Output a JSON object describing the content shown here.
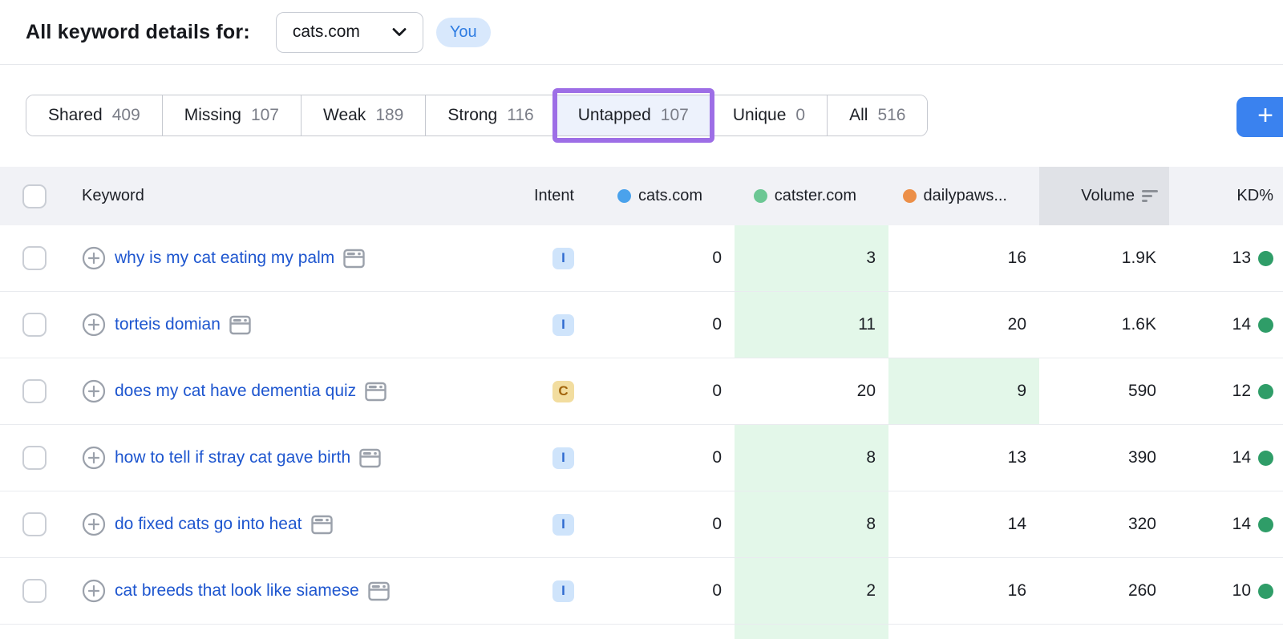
{
  "header": {
    "title": "All keyword details for:",
    "domain_selector": {
      "value": "cats.com"
    },
    "you_badge": "You"
  },
  "filters": {
    "tabs": [
      {
        "label": "Shared",
        "count": "409"
      },
      {
        "label": "Missing",
        "count": "107"
      },
      {
        "label": "Weak",
        "count": "189"
      },
      {
        "label": "Strong",
        "count": "116"
      },
      {
        "label": "Untapped",
        "count": "107",
        "selected": true,
        "annotated": true
      },
      {
        "label": "Unique",
        "count": "0"
      },
      {
        "label": "All",
        "count": "516"
      }
    ],
    "add_button": "+"
  },
  "table": {
    "columns": {
      "keyword": "Keyword",
      "intent": "Intent",
      "competitors": [
        {
          "name": "cats.com",
          "dot_color": "#4aa2ec"
        },
        {
          "name": "catster.com",
          "dot_color": "#6cc794"
        },
        {
          "name": "dailypaws...",
          "dot_color": "#ec8f48"
        }
      ],
      "volume": "Volume",
      "volume_sort": "desc",
      "kd": "KD%"
    },
    "rows": [
      {
        "keyword": "why is my cat eating my palm",
        "intent": "I",
        "cats": "0",
        "catster": "3",
        "dailypaws": "16",
        "volume": "1.9K",
        "kd": "13",
        "highlight": "catster"
      },
      {
        "keyword": "torteis domian",
        "intent": "I",
        "cats": "0",
        "catster": "11",
        "dailypaws": "20",
        "volume": "1.6K",
        "kd": "14",
        "highlight": "catster"
      },
      {
        "keyword": "does my cat have dementia quiz",
        "intent": "C",
        "cats": "0",
        "catster": "20",
        "dailypaws": "9",
        "volume": "590",
        "kd": "12",
        "highlight": "dailypaws"
      },
      {
        "keyword": "how to tell if stray cat gave birth",
        "intent": "I",
        "cats": "0",
        "catster": "8",
        "dailypaws": "13",
        "volume": "390",
        "kd": "14",
        "highlight": "catster"
      },
      {
        "keyword": "do fixed cats go into heat",
        "intent": "I",
        "cats": "0",
        "catster": "8",
        "dailypaws": "14",
        "volume": "320",
        "kd": "14",
        "highlight": "catster"
      },
      {
        "keyword": "cat breeds that look like siamese",
        "intent": "I",
        "cats": "0",
        "catster": "2",
        "dailypaws": "16",
        "volume": "260",
        "kd": "10",
        "highlight": "catster"
      }
    ],
    "partial_row_highlight": "catster"
  },
  "colors": {
    "accent_blue": "#3a82ef",
    "annotation_purple": "#9d6ee6",
    "highlight_green": "#e3f7e9",
    "kd_dot_green": "#2f9d68",
    "link_blue": "#1e56cf",
    "selected_tab_bg": "#edf2fc",
    "intent_informational_bg": "#cfe4fb",
    "intent_informational_text": "#2f6bd0",
    "intent_commercial_bg": "#f2dd9f",
    "intent_commercial_text": "#a2650d"
  }
}
